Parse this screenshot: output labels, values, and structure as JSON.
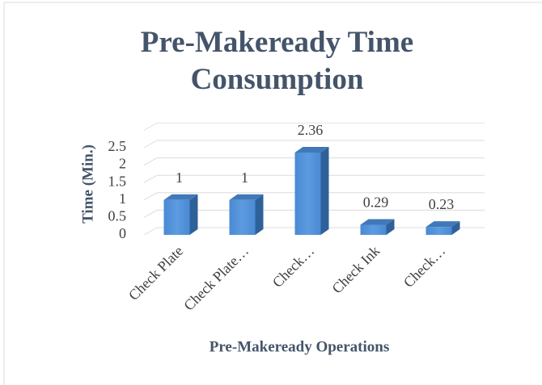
{
  "chart_data": {
    "type": "bar3d",
    "title": "Pre-Makeready Time Consumption",
    "ylabel": "Time (Min.)",
    "xlabel": "Pre-Makeready Operations",
    "categories": [
      "Check Plate",
      "Check Plate…",
      "Check…",
      "Check Ink",
      "Check…"
    ],
    "values": [
      1,
      1,
      2.36,
      0.29,
      0.23
    ],
    "color": "#4a8ad4",
    "ylim": [
      0,
      3
    ],
    "yticks": [
      0,
      0.5,
      1,
      1.5,
      2,
      2.5
    ],
    "grid": true
  }
}
